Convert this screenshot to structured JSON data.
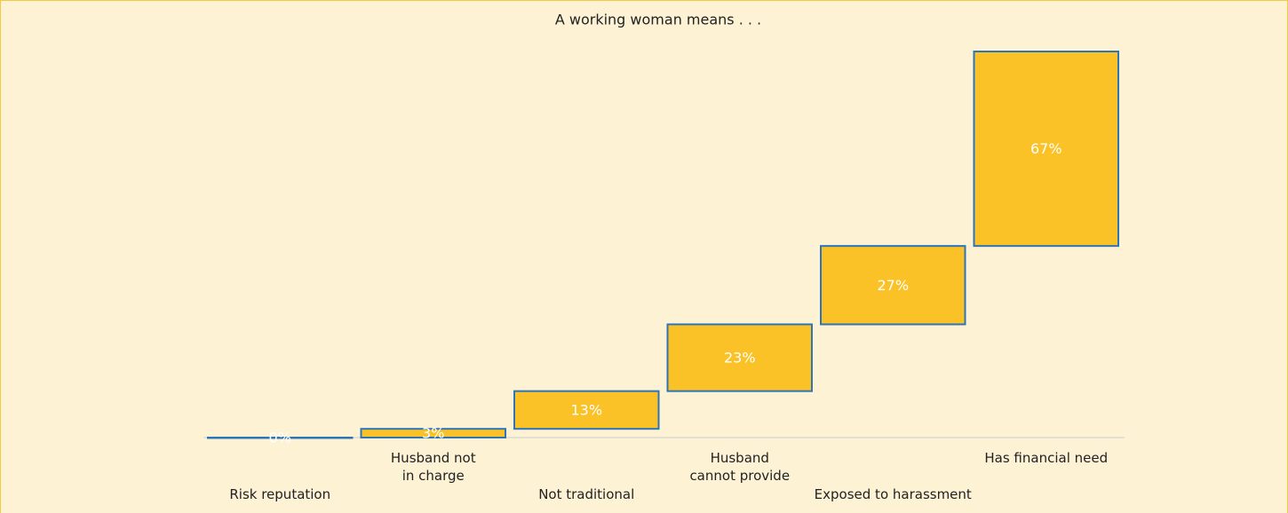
{
  "chart_data": {
    "type": "waterfall",
    "title": "A working woman means . . .",
    "categories": [
      "Risk reputation",
      "Husband not\nin charge",
      "Not traditional",
      "Husband\ncannot provide",
      "Exposed to harassment",
      "Has financial need"
    ],
    "values": [
      0,
      3,
      13,
      23,
      27,
      67
    ],
    "value_labels": [
      "0%",
      "3%",
      "13%",
      "23%",
      "27%",
      "67%"
    ],
    "color": "#fac226",
    "edge_color": "#2e75b6"
  }
}
